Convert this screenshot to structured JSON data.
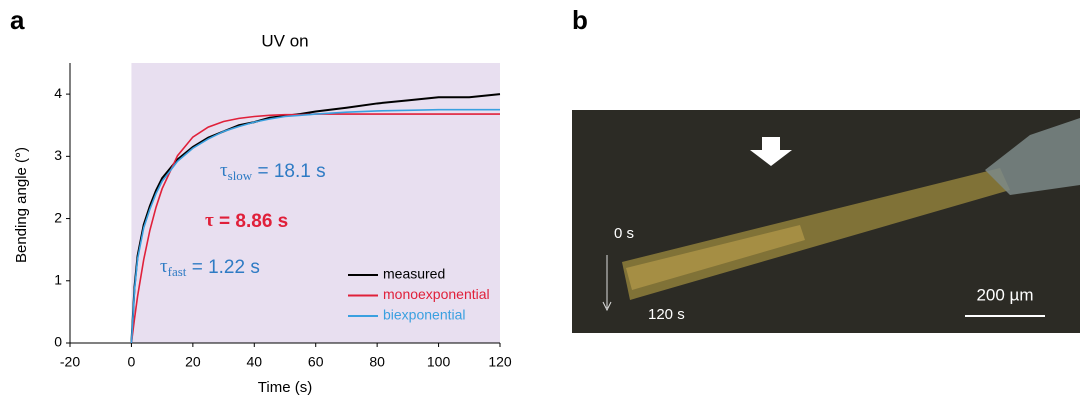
{
  "chart_data": {
    "type": "line",
    "panel_label": "a",
    "title": "UV on",
    "xlabel": "Time (s)",
    "ylabel": "Bending angle (°)",
    "x": [
      0,
      1,
      2,
      4,
      6,
      8,
      10,
      15,
      20,
      25,
      30,
      35,
      40,
      45,
      50,
      55,
      60,
      70,
      80,
      90,
      100,
      110,
      120
    ],
    "series": [
      {
        "name": "measured",
        "color": "#000000",
        "values": [
          0,
          0.9,
          1.4,
          1.9,
          2.2,
          2.45,
          2.65,
          2.95,
          3.15,
          3.3,
          3.4,
          3.5,
          3.55,
          3.62,
          3.65,
          3.68,
          3.72,
          3.78,
          3.85,
          3.9,
          3.95,
          3.95,
          4.0
        ]
      },
      {
        "name": "monoexponential",
        "color": "#e0203a",
        "values": [
          0,
          0.39,
          0.75,
          1.34,
          1.81,
          2.18,
          2.48,
          3.01,
          3.31,
          3.47,
          3.56,
          3.61,
          3.64,
          3.66,
          3.67,
          3.67,
          3.68,
          3.68,
          3.68,
          3.68,
          3.68,
          3.68,
          3.68
        ]
      },
      {
        "name": "biexponential",
        "color": "#3aa0e0",
        "values": [
          0,
          0.85,
          1.35,
          1.85,
          2.15,
          2.4,
          2.6,
          2.92,
          3.13,
          3.28,
          3.4,
          3.48,
          3.55,
          3.6,
          3.64,
          3.66,
          3.68,
          3.71,
          3.73,
          3.74,
          3.75,
          3.75,
          3.75
        ]
      }
    ],
    "shaded_span": [
      0,
      120
    ],
    "shade_color": "#e8dff0",
    "xlim": [
      -20,
      120
    ],
    "xticks": [
      -20,
      0,
      20,
      40,
      60,
      80,
      100,
      120
    ],
    "ylim": [
      0,
      4.5
    ],
    "yticks": [
      0,
      1,
      2,
      3,
      4
    ],
    "legend": "lower right",
    "annotations": [
      {
        "symbol": "τ",
        "sub": "slow",
        "text": " = 18.1 s",
        "color": "#2e7bc4"
      },
      {
        "symbol": "τ",
        "text": " = 8.86 s",
        "color": "#e0203a"
      },
      {
        "symbol": "τ",
        "sub": "fast",
        "text": " = 1.22 s",
        "color": "#2e7bc4"
      }
    ]
  },
  "image": {
    "panel_label": "b",
    "labels": [
      "0 s",
      "120 s"
    ],
    "scale_bar": "200 µm"
  }
}
